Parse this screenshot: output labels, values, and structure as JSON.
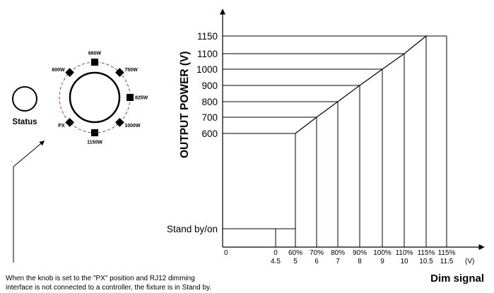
{
  "knob": {
    "status_label": "Status",
    "positions": [
      {
        "label": "660W",
        "angle": 0
      },
      {
        "label": "750W",
        "angle": 45
      },
      {
        "label": "825W",
        "angle": 90
      },
      {
        "label": "1000W",
        "angle": 135
      },
      {
        "label": "1150W",
        "angle": 180
      },
      {
        "label": "PX",
        "angle": 225
      },
      {
        "label": "600W",
        "angle": 315
      }
    ]
  },
  "note": {
    "line1": "When the knob is set to the \"PX\" position and RJ12 dimming",
    "line2": "interface is not connected to a controller, the fixture is in Stand by."
  },
  "chart_data": {
    "type": "line",
    "ylabel": "OUTPUT POWER (V)",
    "xlabel": "Dim signal",
    "x_unit": "(V)",
    "y_ticks": [
      "1150",
      "1100",
      "1000",
      "900",
      "800",
      "700",
      "600",
      "Stand by/on"
    ],
    "x_ticks": [
      {
        "pct": "0",
        "volt": "4.5"
      },
      {
        "pct": "60%",
        "volt": "5"
      },
      {
        "pct": "70%",
        "volt": "6"
      },
      {
        "pct": "80%",
        "volt": "7"
      },
      {
        "pct": "90%",
        "volt": "8"
      },
      {
        "pct": "100%",
        "volt": "9"
      },
      {
        "pct": "110%",
        "volt": "10"
      },
      {
        "pct": "115%",
        "volt": "10.5"
      },
      {
        "pct": "115%",
        "volt": "11.5"
      }
    ],
    "origin_label": "0",
    "ramp_points": [
      {
        "signal": "5",
        "power": "600"
      },
      {
        "signal": "6",
        "power": "700"
      },
      {
        "signal": "7",
        "power": "800"
      },
      {
        "signal": "8",
        "power": "900"
      },
      {
        "signal": "9",
        "power": "1000"
      },
      {
        "signal": "10",
        "power": "1100"
      },
      {
        "signal": "10.5",
        "power": "1150"
      },
      {
        "signal": "11.5",
        "power": "1150"
      }
    ]
  }
}
